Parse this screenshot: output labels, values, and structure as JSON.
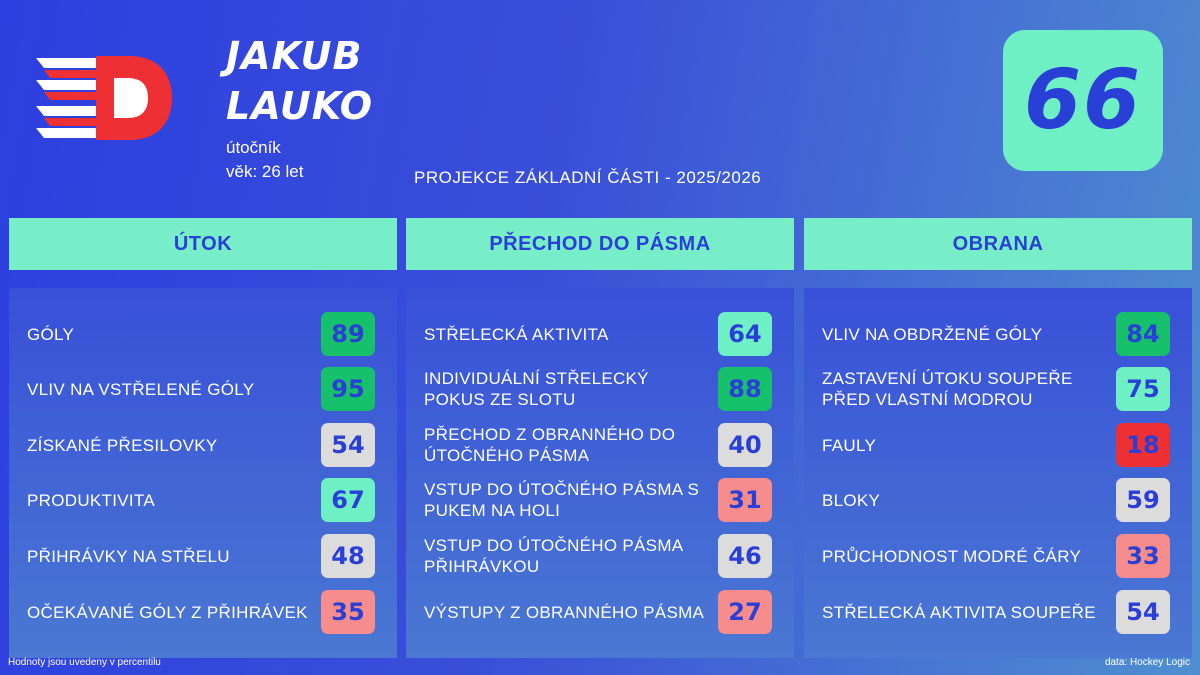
{
  "player": {
    "first_name": "JAKUB",
    "last_name": "LAUKO",
    "position": "útočník",
    "age": "věk: 26 let",
    "overall": "66"
  },
  "projection_title": "PROJEKCE ZÁKLADNÍ ČÁSTI - 2025/2026",
  "colors": {
    "elite": "#17c06a",
    "good": "#6ff0c4",
    "average": "#dcdcdc",
    "below": "#f78c8c",
    "poor": "#ee2f34"
  },
  "columns": [
    {
      "title": "ÚTOK",
      "rows": [
        {
          "label": "GÓLY",
          "value": "89",
          "tier": "elite"
        },
        {
          "label": "VLIV NA VSTŘELENÉ GÓLY",
          "value": "95",
          "tier": "elite"
        },
        {
          "label": "ZÍSKANÉ PŘESILOVKY",
          "value": "54",
          "tier": "average"
        },
        {
          "label": "PRODUKTIVITA",
          "value": "67",
          "tier": "good"
        },
        {
          "label": "PŘIHRÁVKY NA STŘELU",
          "value": "48",
          "tier": "average"
        },
        {
          "label": "OČEKÁVANÉ GÓLY Z PŘIHRÁVEK",
          "value": "35",
          "tier": "below"
        }
      ]
    },
    {
      "title": "PŘECHOD DO PÁSMA",
      "rows": [
        {
          "label": "STŘELECKÁ AKTIVITA",
          "value": "64",
          "tier": "good"
        },
        {
          "label": "INDIVIDUÁLNÍ STŘELECKÝ POKUS ZE SLOTU",
          "value": "88",
          "tier": "elite"
        },
        {
          "label": "PŘECHOD Z OBRANNÉHO DO ÚTOČNÉHO PÁSMA",
          "value": "40",
          "tier": "average"
        },
        {
          "label": "VSTUP DO ÚTOČNÉHO PÁSMA S PUKEM NA HOLI",
          "value": "31",
          "tier": "below"
        },
        {
          "label": "VSTUP DO ÚTOČNÉHO PÁSMA PŘIHRÁVKOU",
          "value": "46",
          "tier": "average"
        },
        {
          "label": "VÝSTUPY Z OBRANNÉHO PÁSMA",
          "value": "27",
          "tier": "below"
        }
      ]
    },
    {
      "title": "OBRANA",
      "rows": [
        {
          "label": "VLIV NA OBDRŽENÉ GÓLY",
          "value": "84",
          "tier": "elite"
        },
        {
          "label": "ZASTAVENÍ ÚTOKU SOUPEŘE PŘED VLASTNÍ MODROU",
          "value": "75",
          "tier": "good"
        },
        {
          "label": "FAULY",
          "value": "18",
          "tier": "poor"
        },
        {
          "label": "BLOKY",
          "value": "59",
          "tier": "average"
        },
        {
          "label": "PRŮCHODNOST MODRÉ ČÁRY",
          "value": "33",
          "tier": "below"
        },
        {
          "label": "STŘELECKÁ AKTIVITA SOUPEŘE",
          "value": "54",
          "tier": "average"
        }
      ]
    }
  ],
  "footer": {
    "note": "Hodnoty jsou uvedeny v percentilu",
    "source": "data: Hockey Logic"
  }
}
